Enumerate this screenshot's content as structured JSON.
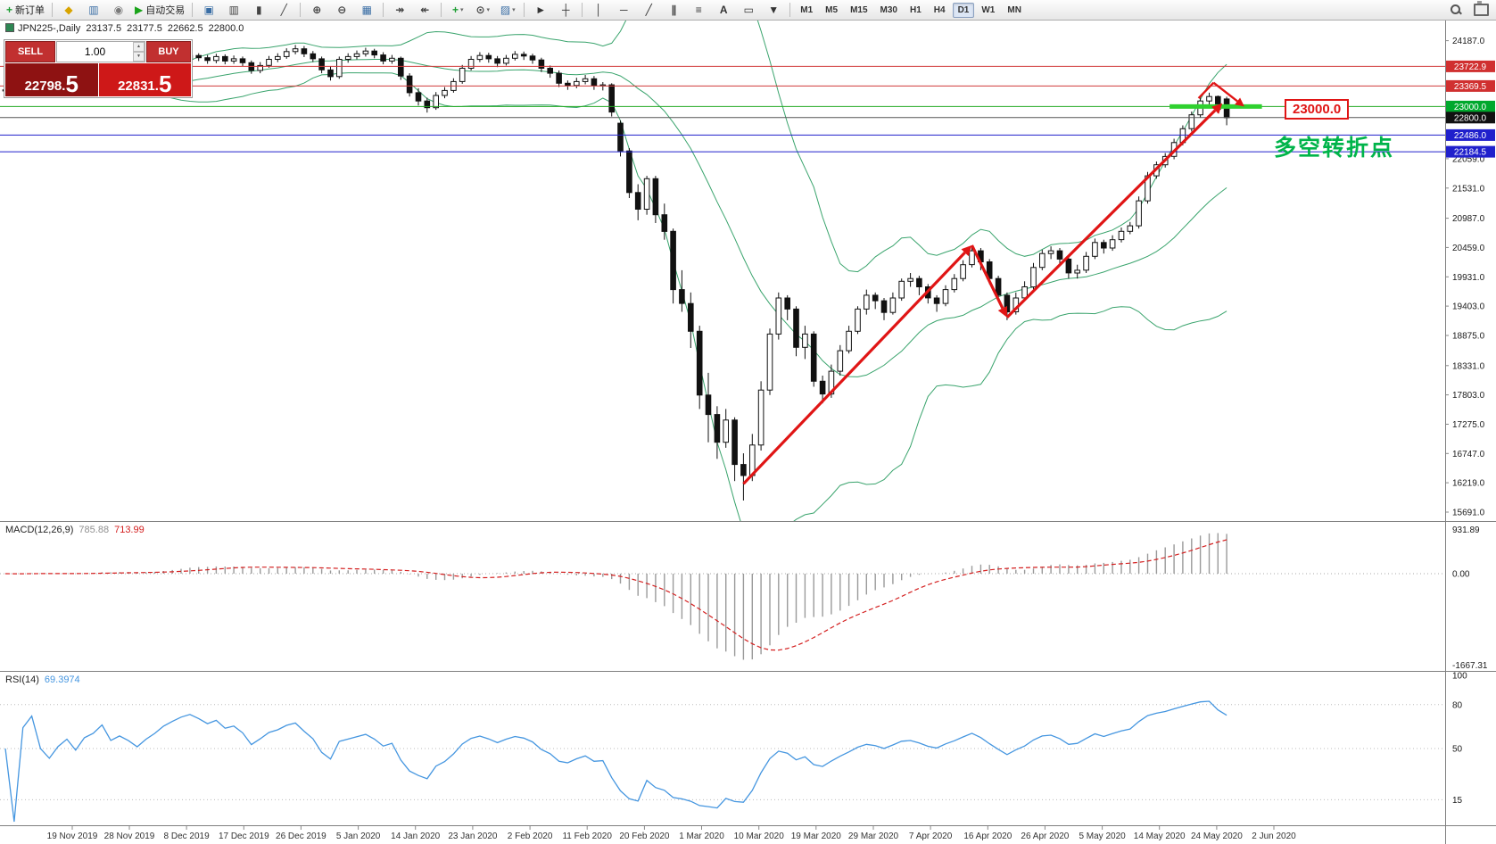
{
  "toolbar": {
    "groups": [
      {
        "items": [
          {
            "name": "new-order-button",
            "glyph": "+",
            "color": "#1d9e33",
            "label": "新订单"
          }
        ]
      },
      {
        "items": [
          {
            "name": "market-watch-icon",
            "glyph": "◆",
            "color": "#d8a400"
          },
          {
            "name": "data-window-icon",
            "glyph": "▥",
            "color": "#3a6ea5"
          },
          {
            "name": "navigator-icon",
            "glyph": "◉",
            "color": "#7a7a7a"
          },
          {
            "name": "auto-trading-button",
            "glyph": "▶",
            "color": "#19a319",
            "label": "自动交易"
          }
        ]
      },
      {
        "items": [
          {
            "name": "tile-windows-icon",
            "glyph": "▣",
            "color": "#3a6ea5"
          },
          {
            "name": "bar-chart-icon",
            "glyph": "▥",
            "color": "#444444"
          },
          {
            "name": "candlestick-chart-icon",
            "glyph": "▮",
            "color": "#444444"
          },
          {
            "name": "line-chart-icon",
            "glyph": "╱",
            "color": "#444444"
          }
        ]
      },
      {
        "items": [
          {
            "name": "zoom-in-icon",
            "glyph": "⊕",
            "color": "#444444"
          },
          {
            "name": "zoom-out-icon",
            "glyph": "⊖",
            "color": "#444444"
          },
          {
            "name": "grid-icon",
            "glyph": "▦",
            "color": "#3a6ea5"
          }
        ]
      },
      {
        "items": [
          {
            "name": "auto-scroll-icon",
            "glyph": "↠",
            "color": "#444444"
          },
          {
            "name": "chart-shift-icon",
            "glyph": "↞",
            "color": "#444444"
          }
        ]
      },
      {
        "items": [
          {
            "name": "indicators-icon",
            "glyph": "+",
            "color": "#1d9e33",
            "caret": true
          },
          {
            "name": "periods-icon",
            "glyph": "⊙",
            "color": "#444444",
            "caret": true
          },
          {
            "name": "templates-icon",
            "glyph": "▨",
            "color": "#3a6ea5",
            "caret": true
          }
        ]
      },
      {
        "items": [
          {
            "name": "cursor-icon",
            "glyph": "►",
            "color": "#333333"
          },
          {
            "name": "crosshair-icon",
            "glyph": "┼",
            "color": "#333333"
          }
        ]
      },
      {
        "items": [
          {
            "name": "vertical-line-icon",
            "glyph": "│",
            "color": "#333333"
          },
          {
            "name": "horizontal-line-icon",
            "glyph": "─",
            "color": "#333333"
          },
          {
            "name": "trendline-icon",
            "glyph": "╱",
            "color": "#333333"
          },
          {
            "name": "channel-icon",
            "glyph": "∥",
            "color": "#333333"
          },
          {
            "name": "fibonacci-icon",
            "glyph": "≡",
            "color": "#333333"
          },
          {
            "name": "text-icon",
            "glyph": "A",
            "color": "#333333"
          },
          {
            "name": "label-icon",
            "glyph": "▭",
            "color": "#333333"
          },
          {
            "name": "shapes-icon",
            "glyph": "▼",
            "color": "#333333"
          }
        ]
      }
    ],
    "timeframes": [
      {
        "label": "M1"
      },
      {
        "label": "M5"
      },
      {
        "label": "M15"
      },
      {
        "label": "M30"
      },
      {
        "label": "H1"
      },
      {
        "label": "H4"
      },
      {
        "label": "D1",
        "active": true
      },
      {
        "label": "W1"
      },
      {
        "label": "MN"
      }
    ],
    "right_icons": [
      {
        "name": "search-icon",
        "css": "css-search"
      },
      {
        "name": "print-icon",
        "css": "css-print"
      }
    ]
  },
  "chart": {
    "header": {
      "symbol": "JPN225-,Daily",
      "o": "23137.5",
      "h": "23177.5",
      "l": "22662.5",
      "c": "22800.0"
    },
    "trade_panel": {
      "sell_label": "SELL",
      "buy_label": "BUY",
      "volume": "1.00",
      "spin_up": "▲",
      "spin_down": "▼",
      "sell_price_main": "22798.",
      "sell_price_big": "5",
      "buy_price_main": "22831.",
      "buy_price_big": "5"
    },
    "macd_header": {
      "label": "MACD(12,26,9)",
      "value_main": "785.88",
      "value_signal": "713.99"
    },
    "rsi_header": {
      "label": "RSI(14)",
      "value": "69.3974"
    },
    "annotation": {
      "text": "多空转折点",
      "color": "#00b44a"
    },
    "price_label_box": "23000.0"
  },
  "chart_data": {
    "type": "candlestick",
    "symbol": "JPN225",
    "timeframe": "Daily",
    "bollinger": {
      "period": 20,
      "deviation": 2
    },
    "candles": [
      [
        23280,
        23350,
        23230,
        23300
      ],
      [
        23300,
        23340,
        23200,
        23250
      ],
      [
        23250,
        23380,
        23220,
        23340
      ],
      [
        23340,
        23420,
        23300,
        23380
      ],
      [
        23380,
        23420,
        23250,
        23300
      ],
      [
        23300,
        23360,
        23210,
        23260
      ],
      [
        23260,
        23360,
        23190,
        23310
      ],
      [
        23310,
        23420,
        23260,
        23350
      ],
      [
        23350,
        23400,
        23210,
        23290
      ],
      [
        23290,
        23430,
        23250,
        23380
      ],
      [
        23380,
        23480,
        23330,
        23420
      ],
      [
        23420,
        23570,
        23380,
        23520
      ],
      [
        23520,
        23560,
        23330,
        23390
      ],
      [
        23390,
        23500,
        23340,
        23450
      ],
      [
        23450,
        23510,
        23350,
        23400
      ],
      [
        23400,
        23460,
        23270,
        23330
      ],
      [
        23330,
        23480,
        23290,
        23430
      ],
      [
        23430,
        23570,
        23390,
        23520
      ],
      [
        23520,
        23700,
        23470,
        23650
      ],
      [
        23650,
        23810,
        23610,
        23750
      ],
      [
        23750,
        23900,
        23700,
        23850
      ],
      [
        23850,
        23980,
        23800,
        23920
      ],
      [
        23920,
        23960,
        23820,
        23880
      ],
      [
        23880,
        23930,
        23770,
        23830
      ],
      [
        23830,
        23950,
        23780,
        23900
      ],
      [
        23900,
        23940,
        23760,
        23820
      ],
      [
        23820,
        23920,
        23770,
        23860
      ],
      [
        23860,
        23900,
        23730,
        23790
      ],
      [
        23790,
        23830,
        23590,
        23650
      ],
      [
        23650,
        23800,
        23600,
        23740
      ],
      [
        23740,
        23910,
        23700,
        23850
      ],
      [
        23850,
        23960,
        23800,
        23900
      ],
      [
        23900,
        24050,
        23860,
        23990
      ],
      [
        23990,
        24110,
        23940,
        24040
      ],
      [
        24040,
        24090,
        23890,
        23950
      ],
      [
        23950,
        24000,
        23800,
        23860
      ],
      [
        23860,
        23900,
        23600,
        23660
      ],
      [
        23660,
        23720,
        23470,
        23540
      ],
      [
        23540,
        23900,
        23500,
        23850
      ],
      [
        23850,
        23960,
        23790,
        23900
      ],
      [
        23900,
        24010,
        23850,
        23950
      ],
      [
        23950,
        24060,
        23900,
        24000
      ],
      [
        24000,
        24040,
        23870,
        23930
      ],
      [
        23930,
        23980,
        23760,
        23820
      ],
      [
        23820,
        23930,
        23770,
        23870
      ],
      [
        23870,
        23900,
        23480,
        23550
      ],
      [
        23550,
        23600,
        23180,
        23250
      ],
      [
        23250,
        23330,
        23020,
        23100
      ],
      [
        23100,
        23160,
        22890,
        22980
      ],
      [
        22980,
        23260,
        22940,
        23200
      ],
      [
        23200,
        23350,
        23150,
        23290
      ],
      [
        23290,
        23510,
        23250,
        23450
      ],
      [
        23450,
        23750,
        23410,
        23690
      ],
      [
        23690,
        23910,
        23650,
        23850
      ],
      [
        23850,
        23980,
        23800,
        23920
      ],
      [
        23920,
        23970,
        23790,
        23860
      ],
      [
        23860,
        23910,
        23710,
        23780
      ],
      [
        23780,
        23930,
        23740,
        23870
      ],
      [
        23870,
        24000,
        23830,
        23940
      ],
      [
        23940,
        23990,
        23840,
        23910
      ],
      [
        23910,
        23950,
        23770,
        23840
      ],
      [
        23840,
        23880,
        23620,
        23690
      ],
      [
        23690,
        23740,
        23520,
        23600
      ],
      [
        23600,
        23650,
        23350,
        23420
      ],
      [
        23420,
        23470,
        23300,
        23380
      ],
      [
        23380,
        23520,
        23330,
        23450
      ],
      [
        23450,
        23570,
        23400,
        23500
      ],
      [
        23500,
        23550,
        23300,
        23380
      ],
      [
        23380,
        23440,
        23290,
        23390
      ],
      [
        23390,
        23420,
        22820,
        22900
      ],
      [
        22700,
        22750,
        22100,
        22200
      ],
      [
        22200,
        22250,
        21350,
        21450
      ],
      [
        21450,
        21600,
        20950,
        21150
      ],
      [
        21150,
        21750,
        21050,
        21700
      ],
      [
        21700,
        21750,
        20900,
        21050
      ],
      [
        21050,
        21250,
        20600,
        20750
      ],
      [
        20750,
        20800,
        19450,
        19700
      ],
      [
        19700,
        20050,
        19300,
        19450
      ],
      [
        19450,
        19650,
        18650,
        18950
      ],
      [
        18950,
        19050,
        17550,
        17800
      ],
      [
        17800,
        18200,
        16950,
        17450
      ],
      [
        17450,
        17600,
        16650,
        16950
      ],
      [
        16950,
        17550,
        16850,
        17350
      ],
      [
        17350,
        17400,
        16250,
        16550
      ],
      [
        16550,
        16750,
        15900,
        16350
      ],
      [
        16350,
        17100,
        16250,
        16900
      ],
      [
        16900,
        18050,
        16800,
        17890
      ],
      [
        17890,
        19000,
        17800,
        18900
      ],
      [
        18900,
        19650,
        18800,
        19550
      ],
      [
        19550,
        19600,
        19150,
        19350
      ],
      [
        19350,
        19400,
        18500,
        18660
      ],
      [
        18660,
        19050,
        18450,
        18900
      ],
      [
        18900,
        18950,
        17950,
        18050
      ],
      [
        18050,
        18150,
        17650,
        17820
      ],
      [
        17820,
        18350,
        17750,
        18230
      ],
      [
        18230,
        18700,
        18150,
        18600
      ],
      [
        18600,
        19050,
        18550,
        18950
      ],
      [
        18950,
        19400,
        18900,
        19350
      ],
      [
        19350,
        19700,
        19250,
        19600
      ],
      [
        19600,
        19650,
        19350,
        19500
      ],
      [
        19500,
        19550,
        19150,
        19290
      ],
      [
        19290,
        19650,
        19250,
        19550
      ],
      [
        19550,
        19900,
        19500,
        19850
      ],
      [
        19850,
        20000,
        19750,
        19900
      ],
      [
        19900,
        19950,
        19600,
        19750
      ],
      [
        19750,
        19800,
        19450,
        19550
      ],
      [
        19550,
        19600,
        19300,
        19450
      ],
      [
        19450,
        19780,
        19400,
        19700
      ],
      [
        19700,
        19980,
        19650,
        19900
      ],
      [
        19900,
        20230,
        19850,
        20150
      ],
      [
        20150,
        20480,
        20100,
        20400
      ],
      [
        20400,
        20450,
        20050,
        20200
      ],
      [
        20200,
        20250,
        19800,
        19900
      ],
      [
        19900,
        19950,
        19500,
        19600
      ],
      [
        19600,
        19650,
        19150,
        19300
      ],
      [
        19300,
        19650,
        19250,
        19550
      ],
      [
        19550,
        19850,
        19500,
        19750
      ],
      [
        19750,
        20180,
        19700,
        20100
      ],
      [
        20100,
        20420,
        20050,
        20350
      ],
      [
        20350,
        20480,
        20250,
        20400
      ],
      [
        20400,
        20450,
        20150,
        20250
      ],
      [
        20250,
        20300,
        19900,
        20000
      ],
      [
        20000,
        20150,
        19900,
        20050
      ],
      [
        20050,
        20380,
        20000,
        20300
      ],
      [
        20300,
        20620,
        20250,
        20550
      ],
      [
        20550,
        20600,
        20350,
        20450
      ],
      [
        20450,
        20680,
        20400,
        20600
      ],
      [
        20600,
        20820,
        20550,
        20750
      ],
      [
        20750,
        20920,
        20700,
        20850
      ],
      [
        20850,
        21380,
        20800,
        21300
      ],
      [
        21300,
        21820,
        21250,
        21750
      ],
      [
        21750,
        22010,
        21700,
        21950
      ],
      [
        21950,
        22160,
        21900,
        22100
      ],
      [
        22100,
        22420,
        22050,
        22350
      ],
      [
        22350,
        22660,
        22300,
        22600
      ],
      [
        22600,
        22910,
        22550,
        22850
      ],
      [
        22850,
        23160,
        22800,
        23100
      ],
      [
        23100,
        23250,
        23020,
        23180
      ],
      [
        23180,
        23200,
        22880,
        22950
      ],
      [
        23137.5,
        23177.5,
        22662.5,
        22800
      ]
    ],
    "price_scale": [
      "24187.0",
      "22059.0",
      "21531.0",
      "20987.0",
      "20459.0",
      "19931.0",
      "19403.0",
      "18875.0",
      "18331.0",
      "17803.0",
      "17275.0",
      "16747.0",
      "16219.0",
      "15691.0"
    ],
    "h_lines": [
      {
        "price": 23722.9,
        "color": "#d03a3a",
        "badge_color": "#d03030",
        "label": "23722.9"
      },
      {
        "price": 23369.5,
        "color": "#d03a3a",
        "badge_color": "#d03030",
        "label": "23369.5"
      },
      {
        "price": 23000.0,
        "color": "#22aa22",
        "badge_color": "#00a82d",
        "label": "23000.0"
      },
      {
        "price": 22800.0,
        "color": "#555555",
        "badge_color": "#111111",
        "label": "22800.0"
      },
      {
        "price": 22486.0,
        "color": "#2020cc",
        "badge_color": "#2020cc",
        "label": "22486.0"
      },
      {
        "price": 22184.5,
        "color": "#2020cc",
        "badge_color": "#2020cc",
        "label": "22184.5"
      }
    ],
    "macd": {
      "params": "12,26,9",
      "value": 785.88,
      "signal_value": 713.99,
      "axis_labels": [
        "931.89",
        "0.00",
        "-1667.31"
      ]
    },
    "rsi": {
      "params": "14",
      "value": 69.3974,
      "levels": [
        80,
        50,
        15
      ],
      "axis_labels": [
        "100",
        "80",
        "50",
        "15"
      ],
      "axis_values": [
        100,
        80,
        50,
        15
      ]
    },
    "date_labels": [
      {
        "text": "19 Nov 2019",
        "x": 0.05
      },
      {
        "text": "28 Nov 2019",
        "x": 0.0895
      },
      {
        "text": "8 Dec 2019",
        "x": 0.1291
      },
      {
        "text": "17 Dec 2019",
        "x": 0.1687
      },
      {
        "text": "26 Dec 2019",
        "x": 0.2083
      },
      {
        "text": "5 Jan 2020",
        "x": 0.2479
      },
      {
        "text": "14 Jan 2020",
        "x": 0.2875
      },
      {
        "text": "23 Jan 2020",
        "x": 0.3271
      },
      {
        "text": "2 Feb 2020",
        "x": 0.3667
      },
      {
        "text": "11 Feb 2020",
        "x": 0.4063
      },
      {
        "text": "20 Feb 2020",
        "x": 0.4459
      },
      {
        "text": "1 Mar 2020",
        "x": 0.4855
      },
      {
        "text": "10 Mar 2020",
        "x": 0.5251
      },
      {
        "text": "19 Mar 2020",
        "x": 0.5647
      },
      {
        "text": "29 Mar 2020",
        "x": 0.6043
      },
      {
        "text": "7 Apr 2020",
        "x": 0.6439
      },
      {
        "text": "16 Apr 2020",
        "x": 0.6835
      },
      {
        "text": "26 Apr 2020",
        "x": 0.7231
      },
      {
        "text": "5 May 2020",
        "x": 0.7627
      },
      {
        "text": "14 May 2020",
        "x": 0.8023
      },
      {
        "text": "24 May 2020",
        "x": 0.8419
      },
      {
        "text": "2 Jun 2020",
        "x": 0.8815
      }
    ],
    "annotations": {
      "color": "#e01515",
      "support_bar": {
        "price": 23000,
        "from_index": 132.5,
        "to_index": 143,
        "color": "#2fd12f"
      },
      "trend_arrows": [
        {
          "from": [
            84,
            16200
          ],
          "to": [
            110,
            20500
          ]
        },
        {
          "from": [
            110,
            20500
          ],
          "to": [
            114,
            19200
          ]
        },
        {
          "from": [
            114,
            19200
          ],
          "to": [
            138.5,
            23060
          ]
        }
      ],
      "pullback_arrow": {
        "points": [
          [
            135.8,
            23150
          ],
          [
            137.5,
            23430
          ],
          [
            141,
            23000
          ]
        ]
      }
    }
  }
}
